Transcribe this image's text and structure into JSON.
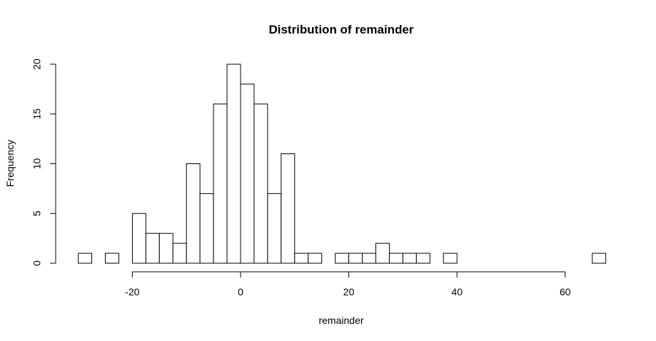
{
  "chart_data": {
    "type": "bar",
    "title": "Distribution of  remainder",
    "xlabel": "remainder",
    "ylabel": "Frequency",
    "xlim": [
      -30,
      68
    ],
    "ylim": [
      0,
      20
    ],
    "bin_width": 2.5,
    "bins": [
      {
        "start": -30,
        "end": -27.5,
        "count": 1
      },
      {
        "start": -27.5,
        "end": -25,
        "count": 0
      },
      {
        "start": -25,
        "end": -22.5,
        "count": 1
      },
      {
        "start": -22.5,
        "end": -20,
        "count": 0
      },
      {
        "start": -20,
        "end": -17.5,
        "count": 5
      },
      {
        "start": -17.5,
        "end": -15,
        "count": 3
      },
      {
        "start": -15,
        "end": -12.5,
        "count": 3
      },
      {
        "start": -12.5,
        "end": -10,
        "count": 2
      },
      {
        "start": -10,
        "end": -7.5,
        "count": 10
      },
      {
        "start": -7.5,
        "end": -5,
        "count": 7
      },
      {
        "start": -5,
        "end": -2.5,
        "count": 16
      },
      {
        "start": -2.5,
        "end": 0,
        "count": 20
      },
      {
        "start": 0,
        "end": 2.5,
        "count": 18
      },
      {
        "start": 2.5,
        "end": 5,
        "count": 16
      },
      {
        "start": 5,
        "end": 7.5,
        "count": 7
      },
      {
        "start": 7.5,
        "end": 10,
        "count": 11
      },
      {
        "start": 10,
        "end": 12.5,
        "count": 1
      },
      {
        "start": 12.5,
        "end": 15,
        "count": 1
      },
      {
        "start": 15,
        "end": 17.5,
        "count": 0
      },
      {
        "start": 17.5,
        "end": 20,
        "count": 1
      },
      {
        "start": 20,
        "end": 22.5,
        "count": 1
      },
      {
        "start": 22.5,
        "end": 25,
        "count": 1
      },
      {
        "start": 25,
        "end": 27.5,
        "count": 2
      },
      {
        "start": 27.5,
        "end": 30,
        "count": 1
      },
      {
        "start": 30,
        "end": 32.5,
        "count": 1
      },
      {
        "start": 32.5,
        "end": 35,
        "count": 1
      },
      {
        "start": 35,
        "end": 37.5,
        "count": 0
      },
      {
        "start": 37.5,
        "end": 40,
        "count": 1
      },
      {
        "start": 40,
        "end": 42.5,
        "count": 0
      },
      {
        "start": 42.5,
        "end": 45,
        "count": 0
      },
      {
        "start": 45,
        "end": 47.5,
        "count": 0
      },
      {
        "start": 47.5,
        "end": 50,
        "count": 0
      },
      {
        "start": 50,
        "end": 52.5,
        "count": 0
      },
      {
        "start": 52.5,
        "end": 55,
        "count": 0
      },
      {
        "start": 55,
        "end": 57.5,
        "count": 0
      },
      {
        "start": 57.5,
        "end": 60,
        "count": 0
      },
      {
        "start": 60,
        "end": 62.5,
        "count": 0
      },
      {
        "start": 62.5,
        "end": 65,
        "count": 0
      },
      {
        "start": 65,
        "end": 67.5,
        "count": 1
      }
    ],
    "x_ticks": [
      "-20",
      "0",
      "20",
      "40",
      "60"
    ],
    "y_ticks": [
      "0",
      "5",
      "10",
      "15",
      "20"
    ],
    "grid": false,
    "bar_fill": "#ffffff",
    "bar_stroke": "#000000"
  }
}
